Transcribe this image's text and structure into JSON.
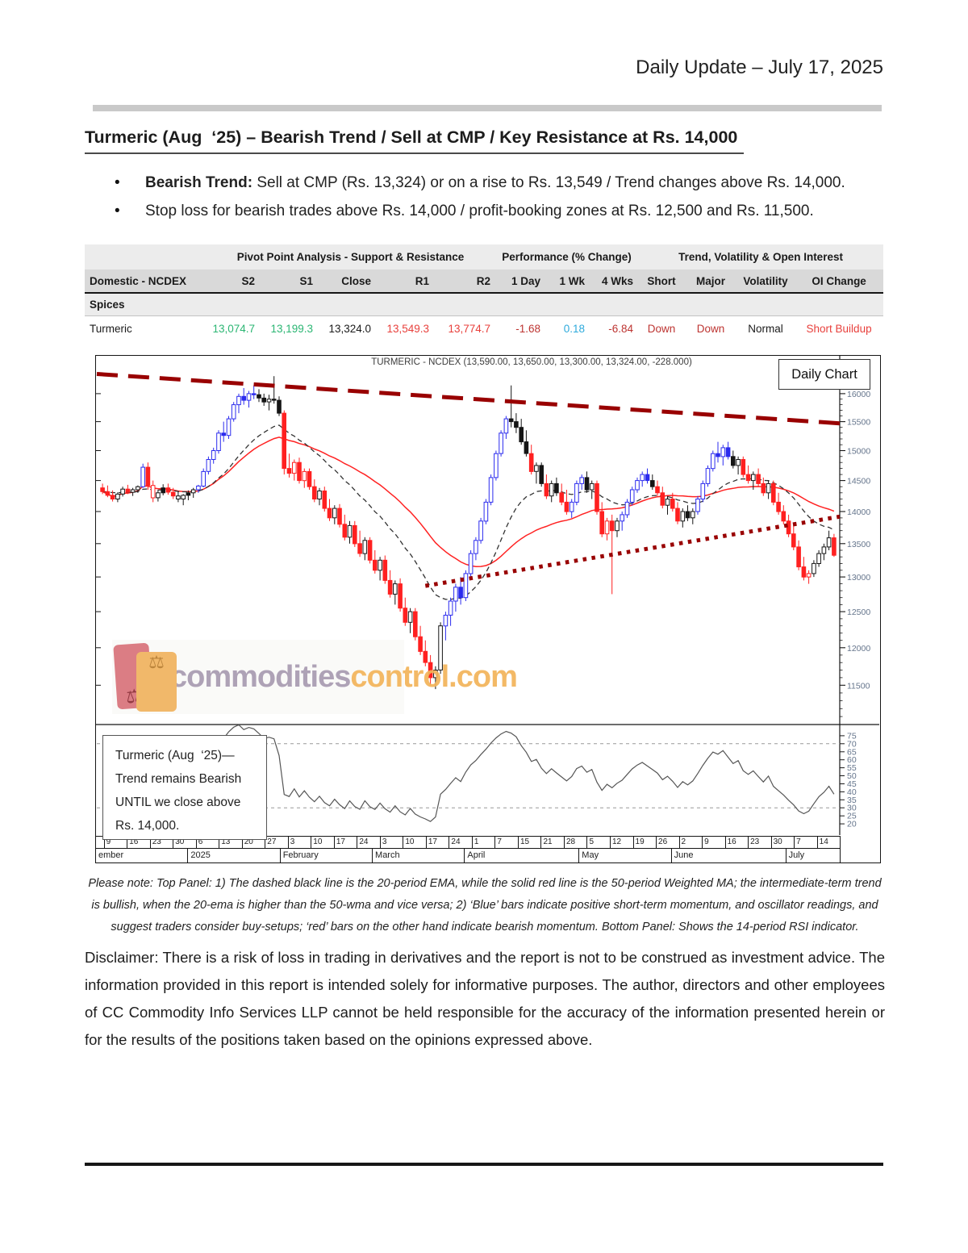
{
  "header": "Daily Update – July 17, 2025",
  "title": "Turmeric (Aug  ‘25) – Bearish Trend / Sell at CMP / Key Resistance at Rs. 14,000",
  "bullets": [
    {
      "lead": "Bearish Trend:",
      "rest": " Sell at CMP (Rs. 13,324) or on a rise to Rs. 13,549 / Trend changes above Rs. 14,000."
    },
    {
      "lead": "",
      "rest": "Stop loss for bearish trades above Rs. 14,000 / profit-booking zones at Rs. 12,500 and Rs. 11,500."
    }
  ],
  "table": {
    "group_headers": [
      "Pivot Point Analysis - Support & Resistance",
      "Performance (% Change)",
      "Trend, Volatility & Open Interest"
    ],
    "columns": [
      "Domestic - NCDEX",
      "S2",
      "S1",
      "Close",
      "R1",
      "R2",
      "1 Day",
      "1 Wk",
      "4 Wks",
      "Short",
      "Major",
      "Volatility",
      "OI Change"
    ],
    "section": "Spices",
    "row": {
      "name": "Turmeric",
      "s2": "13,074.7",
      "s1": "13,199.3",
      "close": "13,324.0",
      "r1": "13,549.3",
      "r2": "13,774.7",
      "d1": "-1.68",
      "w1": "0.18",
      "w4": "-6.84",
      "short": "Down",
      "major": "Down",
      "vol": "Normal",
      "oi": "Short Buildup"
    },
    "colors": {
      "support_green": "#2bb673",
      "resistance_red": "#e8403c",
      "negative_darkred": "#bd3431",
      "positive_blue": "#2eaadc"
    }
  },
  "chart_data": {
    "type": "candlestick",
    "panels": [
      "price",
      "rsi"
    ],
    "title": "TURMERIC - NCDEX (13,590.00, 13,650.00, 13,300.00, 13,324.00, -228.000)",
    "badge": "Daily Chart",
    "annotation": [
      "Turmeric (Aug  ‘25)—",
      "Trend remains Bearish",
      "UNTIL we close above",
      "Rs. 14,000."
    ],
    "watermark": {
      "brand_gray": "commodities",
      "brand_orange": "control.com"
    },
    "y_ticks": [
      16000,
      15500,
      15000,
      14500,
      14000,
      13500,
      13000,
      12500,
      12000,
      11500
    ],
    "price_scale": {
      "min": 11000,
      "max": 16700,
      "scale": "log"
    },
    "rsi_ticks": [
      75,
      70,
      65,
      60,
      55,
      50,
      45,
      40,
      35,
      30,
      25,
      20
    ],
    "rsi_scale": {
      "min": 13,
      "max": 82
    },
    "rsi_gridlines": [
      70,
      30
    ],
    "indicators": {
      "ema_period": 20,
      "wma_period": 50,
      "rsi_period": 14
    },
    "trendlines": [
      {
        "name": "falling-resistance",
        "style": "dashed",
        "color": "#990000",
        "p_start": 16360,
        "p_end": 15470
      },
      {
        "name": "rising-support",
        "style": "dotted",
        "color": "#990000",
        "start_bar": 64,
        "p_start": 12870,
        "p_end": 13920
      }
    ],
    "candle_styles": {
      "r": [
        "#ff2020",
        "#ff2020"
      ],
      "R": [
        "#ffffff",
        "#ff2020"
      ],
      "b": [
        "#2b2bee",
        "#2b2bee"
      ],
      "B": [
        "#ffffff",
        "#2b2bee"
      ],
      "k": [
        "#151515",
        "#151515"
      ],
      "K": [
        "#ffffff",
        "#151515"
      ]
    },
    "x_axis": {
      "day_ticks": [
        "9",
        "16",
        "23",
        "30",
        "6",
        "13",
        "20",
        "27",
        "3",
        "10",
        "17",
        "24",
        "3",
        "10",
        "17",
        "24",
        "1",
        "7",
        "15",
        "21",
        "28",
        "5",
        "12",
        "19",
        "26",
        "2",
        "9",
        "16",
        "23",
        "30",
        "7",
        "14"
      ],
      "months": [
        {
          "label": "ember",
          "weeks": 4
        },
        {
          "label": "2025",
          "weeks": 4
        },
        {
          "label": "February",
          "weeks": 4
        },
        {
          "label": "March",
          "weeks": 4
        },
        {
          "label": "April",
          "weeks": 5
        },
        {
          "label": "May",
          "weeks": 4
        },
        {
          "label": "June",
          "weeks": 5
        },
        {
          "label": "July",
          "weeks": 2.3
        }
      ]
    },
    "candles": [
      [
        14380,
        14450,
        14280,
        14320,
        "r"
      ],
      [
        14320,
        14420,
        14230,
        14260,
        "r"
      ],
      [
        14260,
        14340,
        14160,
        14200,
        "r"
      ],
      [
        14200,
        14310,
        14150,
        14280,
        "K"
      ],
      [
        14280,
        14400,
        14240,
        14360,
        "K"
      ],
      [
        14360,
        14430,
        14280,
        14310,
        "r"
      ],
      [
        14310,
        14380,
        14250,
        14350,
        "K"
      ],
      [
        14350,
        14420,
        14300,
        14400,
        "K"
      ],
      [
        14400,
        14780,
        14380,
        14720,
        "B"
      ],
      [
        14720,
        14800,
        14350,
        14420,
        "r"
      ],
      [
        14420,
        14500,
        14150,
        14220,
        "R"
      ],
      [
        14220,
        14350,
        14160,
        14300,
        "K"
      ],
      [
        14300,
        14440,
        14260,
        14380,
        "k"
      ],
      [
        14380,
        14450,
        14270,
        14310,
        "r"
      ],
      [
        14310,
        14380,
        14200,
        14250,
        "r"
      ],
      [
        14250,
        14320,
        14150,
        14200,
        "K"
      ],
      [
        14200,
        14280,
        14100,
        14260,
        "K"
      ],
      [
        14260,
        14340,
        14180,
        14300,
        "k"
      ],
      [
        14300,
        14380,
        14220,
        14350,
        "K"
      ],
      [
        14350,
        14430,
        14300,
        14410,
        "B"
      ],
      [
        14410,
        14700,
        14390,
        14650,
        "B"
      ],
      [
        14650,
        14900,
        14600,
        14850,
        "B"
      ],
      [
        14850,
        15050,
        14780,
        15000,
        "B"
      ],
      [
        15000,
        15350,
        14950,
        15300,
        "B"
      ],
      [
        15300,
        15500,
        15150,
        15260,
        "b"
      ],
      [
        15260,
        15600,
        15200,
        15550,
        "B"
      ],
      [
        15550,
        15850,
        15500,
        15800,
        "B"
      ],
      [
        15800,
        16000,
        15650,
        15950,
        "B"
      ],
      [
        15950,
        16100,
        15800,
        15880,
        "b"
      ],
      [
        15880,
        16050,
        15750,
        16000,
        "B"
      ],
      [
        16000,
        16150,
        15900,
        15980,
        "b"
      ],
      [
        15980,
        16080,
        15850,
        15920,
        "k"
      ],
      [
        15920,
        16000,
        15780,
        15850,
        "k"
      ],
      [
        15850,
        15980,
        15700,
        15900,
        "K"
      ],
      [
        15900,
        16320,
        15820,
        15880,
        "k"
      ],
      [
        15880,
        15950,
        15600,
        15650,
        "k"
      ],
      [
        15650,
        15700,
        14600,
        14700,
        "r"
      ],
      [
        14700,
        14950,
        14550,
        14620,
        "r"
      ],
      [
        14620,
        14850,
        14500,
        14800,
        "R"
      ],
      [
        14800,
        14880,
        14450,
        14500,
        "r"
      ],
      [
        14500,
        14700,
        14380,
        14650,
        "R"
      ],
      [
        14650,
        14700,
        14350,
        14400,
        "r"
      ],
      [
        14400,
        14520,
        14150,
        14200,
        "r"
      ],
      [
        14200,
        14380,
        14100,
        14330,
        "K"
      ],
      [
        14330,
        14400,
        14000,
        14050,
        "r"
      ],
      [
        14050,
        14200,
        13850,
        13900,
        "r"
      ],
      [
        13900,
        14100,
        13800,
        14050,
        "K"
      ],
      [
        14050,
        14120,
        13750,
        13800,
        "r"
      ],
      [
        13800,
        13950,
        13550,
        13600,
        "r"
      ],
      [
        13600,
        13850,
        13500,
        13780,
        "K"
      ],
      [
        13780,
        13850,
        13450,
        13500,
        "r"
      ],
      [
        13500,
        13700,
        13300,
        13350,
        "r"
      ],
      [
        13350,
        13600,
        13250,
        13550,
        "K"
      ],
      [
        13550,
        13600,
        13200,
        13250,
        "r"
      ],
      [
        13250,
        13400,
        13050,
        13100,
        "r"
      ],
      [
        13100,
        13300,
        12950,
        13250,
        "K"
      ],
      [
        13250,
        13320,
        12900,
        12950,
        "r"
      ],
      [
        12950,
        13100,
        12700,
        12750,
        "r"
      ],
      [
        12750,
        12950,
        12600,
        12900,
        "K"
      ],
      [
        12900,
        12980,
        12500,
        12550,
        "r"
      ],
      [
        12550,
        12700,
        12300,
        12350,
        "r"
      ],
      [
        12350,
        12550,
        12200,
        12500,
        "K"
      ],
      [
        12500,
        12550,
        12100,
        12150,
        "r"
      ],
      [
        12150,
        12300,
        11900,
        11950,
        "r"
      ],
      [
        11950,
        12100,
        11750,
        11800,
        "r"
      ],
      [
        11800,
        11900,
        11500,
        11600,
        "r"
      ],
      [
        11600,
        11750,
        11450,
        11700,
        "K"
      ],
      [
        11700,
        12350,
        11650,
        12300,
        "K"
      ],
      [
        12300,
        12500,
        12100,
        12450,
        "B"
      ],
      [
        12450,
        12700,
        12300,
        12650,
        "B"
      ],
      [
        12650,
        12900,
        12500,
        12850,
        "B"
      ],
      [
        12850,
        13000,
        12600,
        12700,
        "b"
      ],
      [
        12700,
        13100,
        12650,
        13050,
        "B"
      ],
      [
        13050,
        13400,
        13000,
        13350,
        "B"
      ],
      [
        13350,
        13600,
        13250,
        13550,
        "B"
      ],
      [
        13550,
        13900,
        13500,
        13850,
        "B"
      ],
      [
        13850,
        14200,
        13800,
        14150,
        "B"
      ],
      [
        14150,
        14600,
        14100,
        14550,
        "B"
      ],
      [
        14550,
        15000,
        14500,
        14950,
        "B"
      ],
      [
        14950,
        15350,
        14900,
        15300,
        "B"
      ],
      [
        15300,
        15600,
        15200,
        15550,
        "B"
      ],
      [
        15550,
        16150,
        15400,
        15500,
        "k"
      ],
      [
        15500,
        15650,
        15300,
        15400,
        "k"
      ],
      [
        15400,
        15550,
        15100,
        15150,
        "k"
      ],
      [
        15150,
        15350,
        14900,
        14950,
        "k"
      ],
      [
        14950,
        15100,
        14600,
        14650,
        "r"
      ],
      [
        14650,
        14800,
        14450,
        14750,
        "K"
      ],
      [
        14750,
        14800,
        14400,
        14450,
        "k"
      ],
      [
        14450,
        14600,
        14200,
        14250,
        "r"
      ],
      [
        14250,
        14500,
        14150,
        14450,
        "K"
      ],
      [
        14450,
        14550,
        14250,
        14300,
        "k"
      ],
      [
        14300,
        14450,
        14100,
        14150,
        "r"
      ],
      [
        14150,
        14350,
        13950,
        14000,
        "r"
      ],
      [
        14000,
        14200,
        13900,
        14150,
        "B"
      ],
      [
        14150,
        14500,
        14100,
        14450,
        "B"
      ],
      [
        14450,
        14600,
        14350,
        14550,
        "B"
      ],
      [
        14550,
        14650,
        14300,
        14350,
        "k"
      ],
      [
        14350,
        14500,
        14200,
        14450,
        "K"
      ],
      [
        14450,
        14500,
        13950,
        14000,
        "r"
      ],
      [
        14000,
        14150,
        13600,
        13650,
        "r"
      ],
      [
        13650,
        13900,
        13550,
        13850,
        "R"
      ],
      [
        13850,
        13950,
        12750,
        13700,
        "r"
      ],
      [
        13700,
        13900,
        13600,
        13850,
        "K"
      ],
      [
        13850,
        14000,
        13700,
        13950,
        "B"
      ],
      [
        13950,
        14200,
        13900,
        14150,
        "B"
      ],
      [
        14150,
        14400,
        14100,
        14350,
        "B"
      ],
      [
        14350,
        14550,
        14300,
        14500,
        "B"
      ],
      [
        14500,
        14650,
        14400,
        14600,
        "B"
      ],
      [
        14600,
        14700,
        14450,
        14500,
        "b"
      ],
      [
        14500,
        14600,
        14350,
        14400,
        "k"
      ],
      [
        14400,
        14500,
        14250,
        14300,
        "r"
      ],
      [
        14300,
        14400,
        14050,
        14100,
        "r"
      ],
      [
        14100,
        14250,
        13950,
        14200,
        "K"
      ],
      [
        14200,
        14300,
        14000,
        14050,
        "r"
      ],
      [
        14050,
        14150,
        13800,
        13850,
        "r"
      ],
      [
        13850,
        14050,
        13750,
        14000,
        "K"
      ],
      [
        14000,
        14100,
        13850,
        13900,
        "k"
      ],
      [
        13900,
        14050,
        13800,
        14000,
        "K"
      ],
      [
        14000,
        14250,
        13950,
        14200,
        "B"
      ],
      [
        14200,
        14500,
        14150,
        14450,
        "B"
      ],
      [
        14450,
        14750,
        14400,
        14700,
        "B"
      ],
      [
        14700,
        15000,
        14650,
        14950,
        "B"
      ],
      [
        14950,
        15150,
        14800,
        14900,
        "b"
      ],
      [
        14900,
        15100,
        14750,
        15050,
        "B"
      ],
      [
        15050,
        15150,
        14850,
        14900,
        "b"
      ],
      [
        14900,
        15000,
        14700,
        14750,
        "k"
      ],
      [
        14750,
        14900,
        14600,
        14850,
        "K"
      ],
      [
        14850,
        14900,
        14550,
        14600,
        "r"
      ],
      [
        14600,
        14750,
        14450,
        14500,
        "r"
      ],
      [
        14500,
        14650,
        14350,
        14600,
        "K"
      ],
      [
        14600,
        14700,
        14400,
        14450,
        "r"
      ],
      [
        14450,
        14550,
        14250,
        14300,
        "r"
      ],
      [
        14300,
        14500,
        14200,
        14450,
        "K"
      ],
      [
        14450,
        14500,
        14100,
        14150,
        "r"
      ],
      [
        14150,
        14300,
        13950,
        14000,
        "r"
      ],
      [
        14000,
        14100,
        13800,
        13850,
        "r"
      ],
      [
        13850,
        13950,
        13600,
        13650,
        "r"
      ],
      [
        13650,
        13800,
        13400,
        13450,
        "r"
      ],
      [
        13450,
        13550,
        13100,
        13150,
        "r"
      ],
      [
        13150,
        13300,
        12950,
        13000,
        "r"
      ],
      [
        13000,
        13100,
        12900,
        13050,
        "R"
      ],
      [
        13050,
        13250,
        13000,
        13200,
        "K"
      ],
      [
        13200,
        13400,
        13150,
        13350,
        "K"
      ],
      [
        13350,
        13500,
        13250,
        13450,
        "K"
      ],
      [
        13450,
        13700,
        13400,
        13590,
        "K"
      ],
      [
        13590,
        13650,
        13300,
        13324,
        "r"
      ]
    ]
  },
  "note": "Please note: Top Panel: 1) The dashed black line is the 20-period EMA, while the solid red line is the 50-period Weighted MA; the intermediate-term trend is bullish, when the 20-ema is higher than the 50-wma and vice versa; 2)  ‘Blue’  bars indicate positive short-term momentum, and oscillator readings, and suggest traders consider buy-setups;  ‘red’  bars on the other hand indicate bearish momentum. Bottom Panel: Shows the 14-period RSI indicator.",
  "disclaimer": "Disclaimer: There is a risk of loss in trading in derivatives and the report is not to be construed as investment advice. The information provided in this report is intended solely for informative purposes. The author, directors and other employees of CC Commodity Info Services LLP cannot be held responsible for the accuracy of the information presented herein or for the results of the positions taken based on the opinions expressed above."
}
